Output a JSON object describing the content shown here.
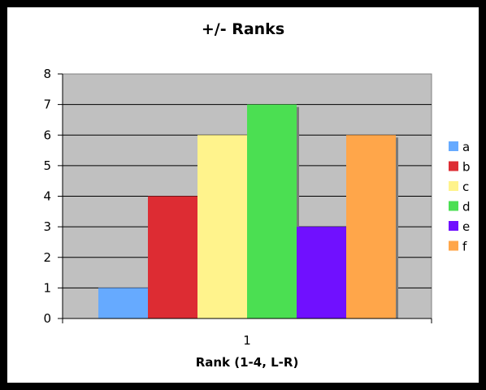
{
  "chart_data": {
    "type": "bar",
    "title": "+/- Ranks",
    "xlabel": "Rank (1-4, L-R)",
    "ylabel": "",
    "categories": [
      "1"
    ],
    "ylim": [
      0,
      8
    ],
    "yticks": [
      "0",
      "1",
      "2",
      "3",
      "4",
      "5",
      "6",
      "7",
      "8"
    ],
    "grid": true,
    "legend_position": "right",
    "plot_background": "#c0c0c0",
    "series": [
      {
        "name": "a",
        "values": [
          1
        ],
        "color": "#66aaff"
      },
      {
        "name": "b",
        "values": [
          4
        ],
        "color": "#dd2c33"
      },
      {
        "name": "c",
        "values": [
          6
        ],
        "color": "#fff38c"
      },
      {
        "name": "d",
        "values": [
          7
        ],
        "color": "#4bdf52"
      },
      {
        "name": "e",
        "values": [
          3
        ],
        "color": "#7010ff"
      },
      {
        "name": "f",
        "values": [
          6
        ],
        "color": "#ffa64a"
      }
    ]
  }
}
